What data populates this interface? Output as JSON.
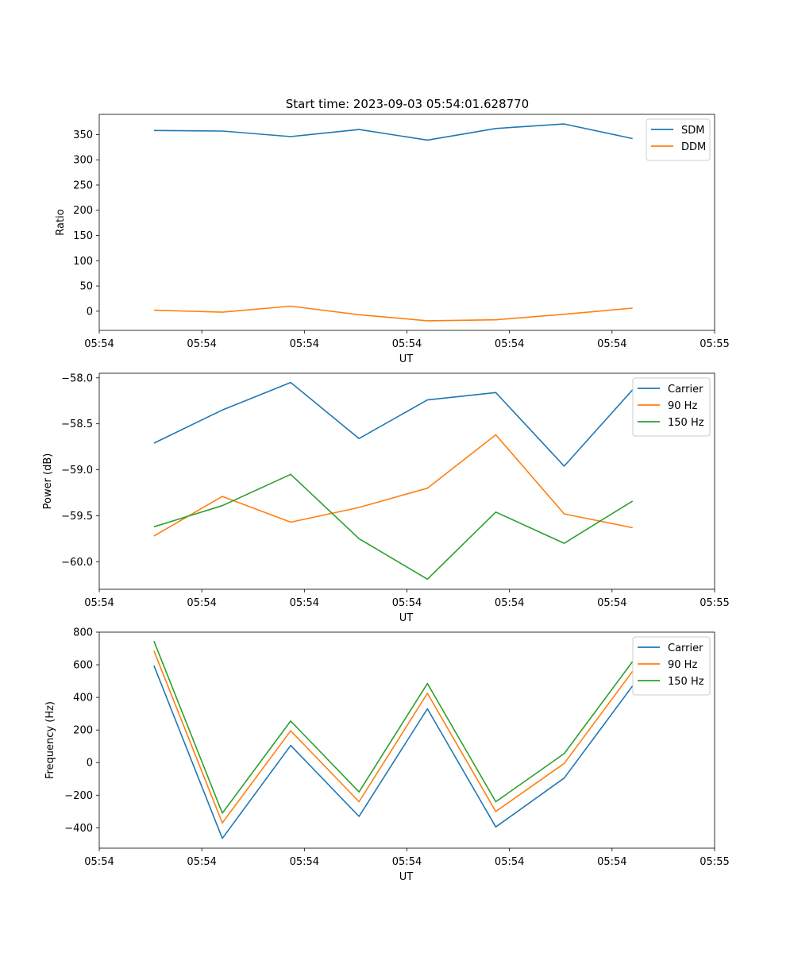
{
  "figure_title": "Start time: 2023-09-03 05:54:01.628770",
  "colors": {
    "blue": "#1f77b4",
    "orange": "#ff7f0e",
    "green": "#2ca02c",
    "axis": "#000000",
    "legend_border": "#cccccc"
  },
  "chart_data": [
    {
      "type": "line",
      "id": "ratio",
      "title": "Start time: 2023-09-03 05:54:01.628770",
      "xlabel": "UT",
      "ylabel": "Ratio",
      "x": [
        1,
        2,
        3,
        4,
        5,
        6,
        7,
        8
      ],
      "xlim": [
        0.2,
        9.2
      ],
      "x_ticks": [
        0.2,
        1.7,
        3.2,
        4.7,
        6.2,
        7.7,
        9.2
      ],
      "x_tick_labels": [
        "05:54",
        "05:54",
        "05:54",
        "05:54",
        "05:54",
        "05:54",
        "05:54"
      ],
      "x_tick_label_last": "05:55",
      "ylim": [
        -38,
        390
      ],
      "y_ticks": [
        0,
        50,
        100,
        150,
        200,
        250,
        300,
        350
      ],
      "y_tick_labels": [
        "0",
        "50",
        "100",
        "150",
        "200",
        "250",
        "300",
        "350"
      ],
      "legend_position": "top-right",
      "series": [
        {
          "name": "SDM",
          "color": "blue",
          "values": [
            358,
            357,
            346,
            360,
            339,
            362,
            371,
            342
          ]
        },
        {
          "name": "DDM",
          "color": "orange",
          "values": [
            2,
            -2,
            10,
            -7,
            -19,
            -17,
            -6,
            6
          ]
        }
      ]
    },
    {
      "type": "line",
      "id": "power",
      "title": "",
      "xlabel": "UT",
      "ylabel": "Power (dB)",
      "x": [
        1,
        2,
        3,
        4,
        5,
        6,
        7,
        8
      ],
      "xlim": [
        0.2,
        9.2
      ],
      "x_ticks": [
        0.2,
        1.7,
        3.2,
        4.7,
        6.2,
        7.7,
        9.2
      ],
      "x_tick_labels": [
        "05:54",
        "05:54",
        "05:54",
        "05:54",
        "05:54",
        "05:54",
        "05:54"
      ],
      "x_tick_label_last": "05:55",
      "ylim": [
        -60.3,
        -57.95
      ],
      "y_ticks": [
        -60.0,
        -59.5,
        -59.0,
        -58.5,
        -58.0
      ],
      "y_tick_labels": [
        "−60.0",
        "−59.5",
        "−59.0",
        "−58.5",
        "−58.0"
      ],
      "legend_position": "top-right",
      "series": [
        {
          "name": "Carrier",
          "color": "blue",
          "values": [
            -58.71,
            -58.35,
            -58.05,
            -58.66,
            -58.24,
            -58.16,
            -58.96,
            -58.13
          ]
        },
        {
          "name": "90 Hz",
          "color": "orange",
          "values": [
            -59.72,
            -59.29,
            -59.57,
            -59.41,
            -59.2,
            -58.62,
            -59.48,
            -59.63
          ]
        },
        {
          "name": "150 Hz",
          "color": "green",
          "values": [
            -59.62,
            -59.39,
            -59.05,
            -59.75,
            -60.19,
            -59.46,
            -59.8,
            -59.34
          ]
        }
      ]
    },
    {
      "type": "line",
      "id": "frequency",
      "title": "",
      "xlabel": "UT",
      "ylabel": "Frequency (Hz)",
      "x": [
        1,
        2,
        3,
        4,
        5,
        6,
        7,
        8
      ],
      "xlim": [
        0.2,
        9.2
      ],
      "x_ticks": [
        0.2,
        1.7,
        3.2,
        4.7,
        6.2,
        7.7,
        9.2
      ],
      "x_tick_labels": [
        "05:54",
        "05:54",
        "05:54",
        "05:54",
        "05:54",
        "05:54",
        "05:54"
      ],
      "x_tick_label_last": "05:55",
      "ylim": [
        -525,
        800
      ],
      "y_ticks": [
        -400,
        -200,
        0,
        200,
        400,
        600,
        800
      ],
      "y_tick_labels": [
        "−400",
        "−200",
        "0",
        "200",
        "400",
        "600",
        "800"
      ],
      "legend_position": "top-right",
      "series": [
        {
          "name": "Carrier",
          "color": "blue",
          "values": [
            595,
            -465,
            105,
            -330,
            330,
            -395,
            -95,
            470
          ]
        },
        {
          "name": "90 Hz",
          "color": "orange",
          "values": [
            685,
            -370,
            195,
            -240,
            425,
            -300,
            -5,
            560
          ]
        },
        {
          "name": "150 Hz",
          "color": "green",
          "values": [
            745,
            -310,
            255,
            -180,
            485,
            -240,
            55,
            620
          ]
        }
      ]
    }
  ]
}
